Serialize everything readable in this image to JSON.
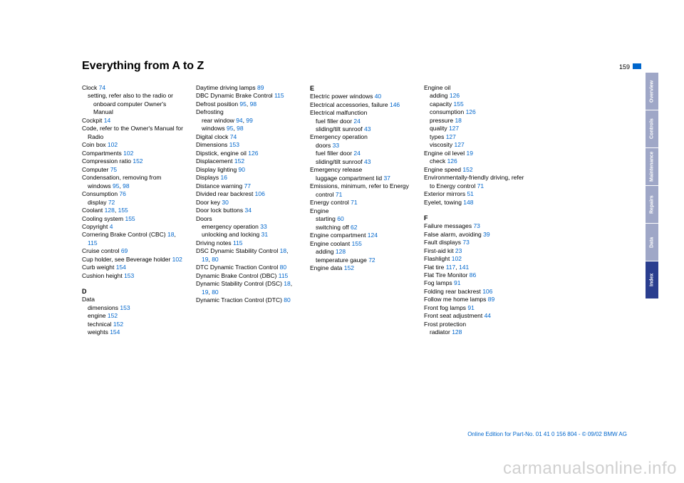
{
  "header": {
    "title": "Everything from A to Z",
    "page_number": "159"
  },
  "columns": [
    [
      {
        "t": "entry",
        "text": "Clock ",
        "pg": "74"
      },
      {
        "t": "sub",
        "text": "setting, refer also to the radio or onboard computer Owner's Manual"
      },
      {
        "t": "entry",
        "text": "Cockpit ",
        "pg": "14"
      },
      {
        "t": "entry",
        "text": "Code, refer to the Owner's Manual for Radio"
      },
      {
        "t": "entry",
        "text": "Coin box ",
        "pg": "102"
      },
      {
        "t": "entry",
        "text": "Compartments ",
        "pg": "102"
      },
      {
        "t": "entry",
        "text": "Compression ratio ",
        "pg": "152"
      },
      {
        "t": "entry",
        "text": "Computer ",
        "pg": "75"
      },
      {
        "t": "entry",
        "text": "Condensation, removing from windows ",
        "pg": "95, 98"
      },
      {
        "t": "entry",
        "text": "Consumption ",
        "pg": "76"
      },
      {
        "t": "sub",
        "text": "display ",
        "pg": "72"
      },
      {
        "t": "entry",
        "text": "Coolant ",
        "pg": "128, 155"
      },
      {
        "t": "entry",
        "text": "Cooling system ",
        "pg": "155"
      },
      {
        "t": "entry",
        "text": "Copyright ",
        "pg": "4"
      },
      {
        "t": "entry",
        "text": "Cornering Brake Control (CBC) ",
        "pg": "18, 115"
      },
      {
        "t": "entry",
        "text": "Cruise control ",
        "pg": "69"
      },
      {
        "t": "entry",
        "text": "Cup holder, see Beverage holder ",
        "pg": "102"
      },
      {
        "t": "entry",
        "text": "Curb weight ",
        "pg": "154"
      },
      {
        "t": "entry",
        "text": "Cushion height ",
        "pg": "153"
      },
      {
        "t": "section",
        "text": "D"
      },
      {
        "t": "entry",
        "text": "Data"
      },
      {
        "t": "sub",
        "text": "dimensions ",
        "pg": "153"
      },
      {
        "t": "sub",
        "text": "engine ",
        "pg": "152"
      },
      {
        "t": "sub",
        "text": "technical ",
        "pg": "152"
      },
      {
        "t": "sub",
        "text": "weights ",
        "pg": "154"
      }
    ],
    [
      {
        "t": "entry",
        "text": "Daytime driving lamps ",
        "pg": "89"
      },
      {
        "t": "entry",
        "text": "DBC Dynamic Brake Control ",
        "pg": "115"
      },
      {
        "t": "entry",
        "text": "Defrost position ",
        "pg": "95, 98"
      },
      {
        "t": "entry",
        "text": "Defrosting"
      },
      {
        "t": "sub",
        "text": "rear window ",
        "pg": "94, 99"
      },
      {
        "t": "sub",
        "text": "windows ",
        "pg": "95, 98"
      },
      {
        "t": "entry",
        "text": "Digital clock ",
        "pg": "74"
      },
      {
        "t": "entry",
        "text": "Dimensions ",
        "pg": "153"
      },
      {
        "t": "entry",
        "text": "Dipstick, engine oil ",
        "pg": "126"
      },
      {
        "t": "entry",
        "text": "Displacement ",
        "pg": "152"
      },
      {
        "t": "entry",
        "text": "Display lighting ",
        "pg": "90"
      },
      {
        "t": "entry",
        "text": "Displays ",
        "pg": "16"
      },
      {
        "t": "entry",
        "text": "Distance warning ",
        "pg": "77"
      },
      {
        "t": "entry",
        "text": "Divided rear backrest ",
        "pg": "106"
      },
      {
        "t": "entry",
        "text": "Door key ",
        "pg": "30"
      },
      {
        "t": "entry",
        "text": "Door lock buttons ",
        "pg": "34"
      },
      {
        "t": "entry",
        "text": "Doors"
      },
      {
        "t": "sub",
        "text": "emergency operation ",
        "pg": "33"
      },
      {
        "t": "sub",
        "text": "unlocking and locking ",
        "pg": "31"
      },
      {
        "t": "entry",
        "text": "Driving notes ",
        "pg": "115"
      },
      {
        "t": "entry",
        "text": "DSC Dynamic Stability Control ",
        "pg": "18, 19, 80"
      },
      {
        "t": "entry",
        "text": "DTC Dynamic Traction Control ",
        "pg": "80"
      },
      {
        "t": "entry",
        "text": "Dynamic Brake Control (DBC) ",
        "pg": "115"
      },
      {
        "t": "entry",
        "text": "Dynamic Stability Control (DSC) ",
        "pg": "18, 19, 80"
      },
      {
        "t": "entry",
        "text": "Dynamic Traction Control (DTC) ",
        "pg": "80"
      }
    ],
    [
      {
        "t": "section",
        "text": "E",
        "nomargin": true
      },
      {
        "t": "entry",
        "text": "Electric power windows ",
        "pg": "40"
      },
      {
        "t": "entry",
        "text": "Electrical accessories, failure ",
        "pg": "146"
      },
      {
        "t": "entry",
        "text": "Electrical malfunction"
      },
      {
        "t": "sub",
        "text": "fuel filler door ",
        "pg": "24"
      },
      {
        "t": "sub",
        "text": "sliding/tilt sunroof ",
        "pg": "43"
      },
      {
        "t": "entry",
        "text": "Emergency operation"
      },
      {
        "t": "sub",
        "text": "doors ",
        "pg": "33"
      },
      {
        "t": "sub",
        "text": "fuel filler door ",
        "pg": "24"
      },
      {
        "t": "sub",
        "text": "sliding/tilt sunroof ",
        "pg": "43"
      },
      {
        "t": "entry",
        "text": "Emergency release"
      },
      {
        "t": "sub",
        "text": "luggage compartment lid ",
        "pg": "37"
      },
      {
        "t": "entry",
        "text": "Emissions, minimum, refer to Energy control ",
        "pg": "71"
      },
      {
        "t": "entry",
        "text": "Energy control ",
        "pg": "71"
      },
      {
        "t": "entry",
        "text": "Engine"
      },
      {
        "t": "sub",
        "text": "starting ",
        "pg": "60"
      },
      {
        "t": "sub",
        "text": "switching off ",
        "pg": "62"
      },
      {
        "t": "entry",
        "text": "Engine compartment ",
        "pg": "124"
      },
      {
        "t": "entry",
        "text": "Engine coolant ",
        "pg": "155"
      },
      {
        "t": "sub",
        "text": "adding ",
        "pg": "128"
      },
      {
        "t": "sub",
        "text": "temperature gauge ",
        "pg": "72"
      },
      {
        "t": "entry",
        "text": "Engine data ",
        "pg": "152"
      }
    ],
    [
      {
        "t": "entry",
        "text": "Engine oil"
      },
      {
        "t": "sub",
        "text": "adding ",
        "pg": "126"
      },
      {
        "t": "sub",
        "text": "capacity ",
        "pg": "155"
      },
      {
        "t": "sub",
        "text": "consumption ",
        "pg": "126"
      },
      {
        "t": "sub",
        "text": "pressure ",
        "pg": "18"
      },
      {
        "t": "sub",
        "text": "quality ",
        "pg": "127"
      },
      {
        "t": "sub",
        "text": "types ",
        "pg": "127"
      },
      {
        "t": "sub",
        "text": "viscosity ",
        "pg": "127"
      },
      {
        "t": "entry",
        "text": "Engine oil level ",
        "pg": "19"
      },
      {
        "t": "sub",
        "text": "check ",
        "pg": "126"
      },
      {
        "t": "entry",
        "text": "Engine speed ",
        "pg": "152"
      },
      {
        "t": "entry",
        "text": "Environmentally-friendly driving, refer to Energy control ",
        "pg": "71"
      },
      {
        "t": "entry",
        "text": "Exterior mirrors ",
        "pg": "51"
      },
      {
        "t": "entry",
        "text": "Eyelet, towing ",
        "pg": "148"
      },
      {
        "t": "section",
        "text": "F"
      },
      {
        "t": "entry",
        "text": "Failure messages ",
        "pg": "73"
      },
      {
        "t": "entry",
        "text": "False alarm, avoiding ",
        "pg": "39"
      },
      {
        "t": "entry",
        "text": "Fault displays ",
        "pg": "73"
      },
      {
        "t": "entry",
        "text": "First-aid kit ",
        "pg": "23"
      },
      {
        "t": "entry",
        "text": "Flashlight ",
        "pg": "102"
      },
      {
        "t": "entry",
        "text": "Flat tire ",
        "pg": "117, 141"
      },
      {
        "t": "entry",
        "text": "Flat Tire Monitor ",
        "pg": "86"
      },
      {
        "t": "entry",
        "text": "Fog lamps ",
        "pg": "91"
      },
      {
        "t": "entry",
        "text": "Folding rear backrest ",
        "pg": "106"
      },
      {
        "t": "entry",
        "text": "Follow me home lamps ",
        "pg": "89"
      },
      {
        "t": "entry",
        "text": "Front fog lamps ",
        "pg": "91"
      },
      {
        "t": "entry",
        "text": "Front seat adjustment ",
        "pg": "44"
      },
      {
        "t": "entry",
        "text": "Frost protection"
      },
      {
        "t": "sub",
        "text": "radiator ",
        "pg": "128"
      }
    ]
  ],
  "tabs": [
    {
      "label": "Overview",
      "bg": "#9fa7c7"
    },
    {
      "label": "Controls",
      "bg": "#9fa7c7"
    },
    {
      "label": "Maintenance",
      "bg": "#9fa7c7"
    },
    {
      "label": "Repairs",
      "bg": "#9fa7c7"
    },
    {
      "label": "Data",
      "bg": "#9fa7c7"
    },
    {
      "label": "Index",
      "bg": "#2a3e8f"
    }
  ],
  "footer": "Online Edition for Part-No. 01 41 0 156 804 - © 09/02 BMW AG",
  "watermark": "carmanualsonline.info"
}
